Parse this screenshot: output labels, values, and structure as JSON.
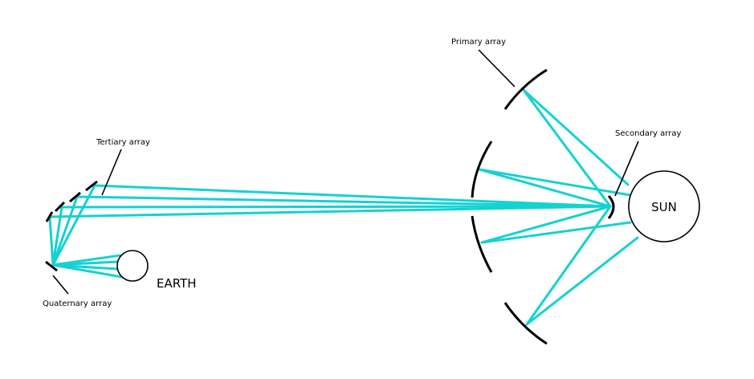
{
  "labels": {
    "primary": "Primary array",
    "secondary": "Secondary array",
    "tertiary": "Tertiary array",
    "quaternary": "Quaternary array",
    "sun": "SUN",
    "earth": "EARTH"
  },
  "colors": {
    "beam": "#14d2d2",
    "structure": "#000000",
    "background": "#ffffff"
  }
}
